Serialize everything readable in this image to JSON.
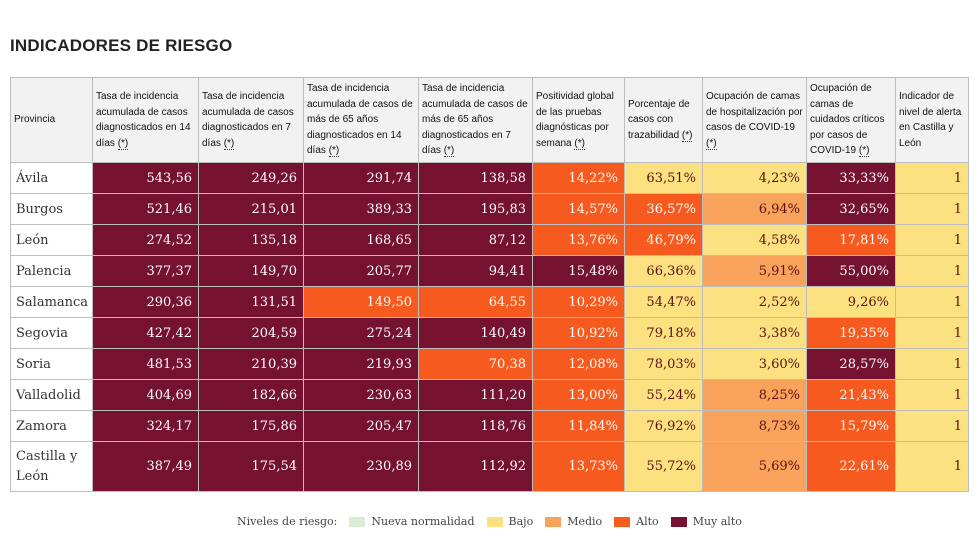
{
  "title": "INDICADORES DE RIESGO",
  "columns": [
    {
      "text": "Provincia",
      "ast": ""
    },
    {
      "text": "Tasa de incidencia acumulada de casos diagnosticados en 14 días ",
      "ast": "(*)"
    },
    {
      "text": "Tasa de incidencia acumulada de casos diagnosticados en 7 días ",
      "ast": "(*)"
    },
    {
      "text": "Tasa de incidencia acumulada de casos de más de 65 años diagnosticados en 14 días ",
      "ast": "(*)"
    },
    {
      "text": "Tasa de incidencia acumulada de casos de más de 65 años diagnosticados en 7 días ",
      "ast": "(*)"
    },
    {
      "text": "Positividad global de las pruebas diagnósticas por semana ",
      "ast": "(*)"
    },
    {
      "text": "Porcentaje de casos con trazabilidad ",
      "ast": "(*)"
    },
    {
      "text": "Ocupación de camas de hospitalización por casos de COVID-19 ",
      "ast": "(*)"
    },
    {
      "text": "Ocupación de camas de cuidados críticos por casos de COVID-19 ",
      "ast": "(*)"
    },
    {
      "text": "Indicador de nivel de alerta en Castilla y León",
      "ast": ""
    }
  ],
  "level_colors": {
    "muyalto": "#74122f",
    "alto": "#f75a1f",
    "medio": "#f9a25b",
    "bajo": "#fce181",
    "nueva": "#dcebd6"
  },
  "rows": [
    {
      "provincia": "Ávila",
      "values": [
        "543,56",
        "249,26",
        "291,74",
        "138,58",
        "14,22%",
        "63,51%",
        "4,23%",
        "33,33%",
        "1"
      ],
      "levels": [
        "muyalto",
        "muyalto",
        "muyalto",
        "muyalto",
        "alto",
        "bajo",
        "bajo",
        "muyalto",
        "bajo"
      ]
    },
    {
      "provincia": "Burgos",
      "values": [
        "521,46",
        "215,01",
        "389,33",
        "195,83",
        "14,57%",
        "36,57%",
        "6,94%",
        "32,65%",
        "1"
      ],
      "levels": [
        "muyalto",
        "muyalto",
        "muyalto",
        "muyalto",
        "alto",
        "alto",
        "medio",
        "muyalto",
        "bajo"
      ]
    },
    {
      "provincia": "León",
      "values": [
        "274,52",
        "135,18",
        "168,65",
        "87,12",
        "13,76%",
        "46,79%",
        "4,58%",
        "17,81%",
        "1"
      ],
      "levels": [
        "muyalto",
        "muyalto",
        "muyalto",
        "muyalto",
        "alto",
        "alto",
        "bajo",
        "alto",
        "bajo"
      ]
    },
    {
      "provincia": "Palencia",
      "values": [
        "377,37",
        "149,70",
        "205,77",
        "94,41",
        "15,48%",
        "66,36%",
        "5,91%",
        "55,00%",
        "1"
      ],
      "levels": [
        "muyalto",
        "muyalto",
        "muyalto",
        "muyalto",
        "muyalto",
        "bajo",
        "medio",
        "muyalto",
        "bajo"
      ]
    },
    {
      "provincia": "Salamanca",
      "values": [
        "290,36",
        "131,51",
        "149,50",
        "64,55",
        "10,29%",
        "54,47%",
        "2,52%",
        "9,26%",
        "1"
      ],
      "levels": [
        "muyalto",
        "muyalto",
        "alto",
        "alto",
        "alto",
        "bajo",
        "bajo",
        "bajo",
        "bajo"
      ]
    },
    {
      "provincia": "Segovia",
      "values": [
        "427,42",
        "204,59",
        "275,24",
        "140,49",
        "10,92%",
        "79,18%",
        "3,38%",
        "19,35%",
        "1"
      ],
      "levels": [
        "muyalto",
        "muyalto",
        "muyalto",
        "muyalto",
        "alto",
        "bajo",
        "bajo",
        "alto",
        "bajo"
      ]
    },
    {
      "provincia": "Soria",
      "values": [
        "481,53",
        "210,39",
        "219,93",
        "70,38",
        "12,08%",
        "78,03%",
        "3,60%",
        "28,57%",
        "1"
      ],
      "levels": [
        "muyalto",
        "muyalto",
        "muyalto",
        "alto",
        "alto",
        "bajo",
        "bajo",
        "muyalto",
        "bajo"
      ]
    },
    {
      "provincia": "Valladolid",
      "values": [
        "404,69",
        "182,66",
        "230,63",
        "111,20",
        "13,00%",
        "55,24%",
        "8,25%",
        "21,43%",
        "1"
      ],
      "levels": [
        "muyalto",
        "muyalto",
        "muyalto",
        "muyalto",
        "alto",
        "bajo",
        "medio",
        "alto",
        "bajo"
      ]
    },
    {
      "provincia": "Zamora",
      "values": [
        "324,17",
        "175,86",
        "205,47",
        "118,76",
        "11,84%",
        "76,92%",
        "8,73%",
        "15,79%",
        "1"
      ],
      "levels": [
        "muyalto",
        "muyalto",
        "muyalto",
        "muyalto",
        "alto",
        "bajo",
        "medio",
        "alto",
        "bajo"
      ]
    },
    {
      "provincia": "Castilla y León",
      "values": [
        "387,49",
        "175,54",
        "230,89",
        "112,92",
        "13,73%",
        "55,72%",
        "5,69%",
        "22,61%",
        "1"
      ],
      "levels": [
        "muyalto",
        "muyalto",
        "muyalto",
        "muyalto",
        "alto",
        "bajo",
        "medio",
        "alto",
        "bajo"
      ]
    }
  ],
  "legend": {
    "label": "Niveles de riesgo:",
    "items": [
      {
        "label": "Nueva normalidad",
        "color": "#dcebd6"
      },
      {
        "label": "Bajo",
        "color": "#fce181"
      },
      {
        "label": "Medio",
        "color": "#f9a25b"
      },
      {
        "label": "Alto",
        "color": "#f75a1f"
      },
      {
        "label": "Muy alto",
        "color": "#74122f"
      }
    ]
  }
}
